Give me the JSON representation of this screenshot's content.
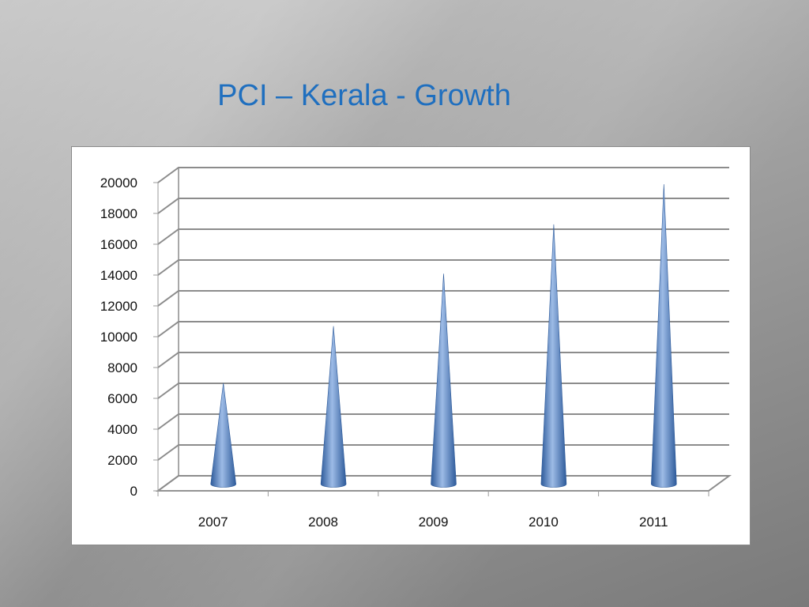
{
  "slide": {
    "title": "PCI – Kerala - Growth"
  },
  "chart_data": {
    "type": "bar",
    "bar_shape": "cone",
    "title": "",
    "xlabel": "",
    "ylabel": "",
    "categories": [
      "2007",
      "2008",
      "2009",
      "2010",
      "2011"
    ],
    "values": [
      6500,
      10200,
      13600,
      16800,
      19400
    ],
    "ylim": [
      0,
      20000
    ],
    "yticks": [
      "0",
      "2000",
      "4000",
      "6000",
      "8000",
      "10000",
      "12000",
      "14000",
      "16000",
      "18000",
      "20000"
    ],
    "grid": true,
    "legend": "none",
    "colors": {
      "bar_dark": "#2d5a9a",
      "bar_mid": "#4f81bd",
      "bar_light": "#9dbbe6",
      "grid": "#8c8c8c",
      "title": "#1f6fbf"
    }
  }
}
